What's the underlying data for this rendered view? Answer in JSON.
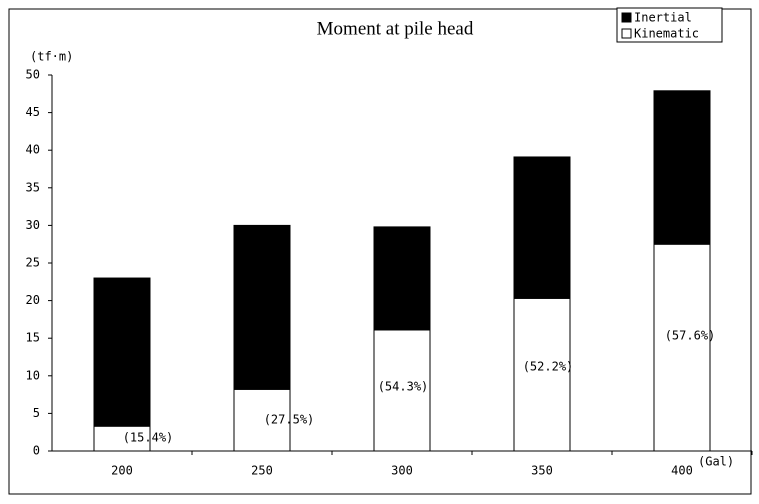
{
  "chart_data": {
    "type": "stacked-bar",
    "title": "Moment at pile head",
    "y_label": "(tf·m)",
    "x_label": "(Gal)",
    "categories": [
      "200",
      "250",
      "300",
      "350",
      "400"
    ],
    "series": [
      {
        "name": "Kinematic",
        "color": "#ffffff",
        "values": [
          3.3,
          8.2,
          16.1,
          20.3,
          27.5
        ]
      },
      {
        "name": "Inertial",
        "color": "#000000",
        "values": [
          19.7,
          21.8,
          13.7,
          18.8,
          20.4
        ]
      }
    ],
    "annotations": [
      "(15.4%)",
      "(27.5%)",
      "(54.3%)",
      "(52.2%)",
      "(57.6%)"
    ],
    "ylim": [
      0,
      50
    ],
    "yticks": [
      0,
      5,
      10,
      15,
      20,
      25,
      30,
      35,
      40,
      45,
      50
    ],
    "grid": false
  }
}
